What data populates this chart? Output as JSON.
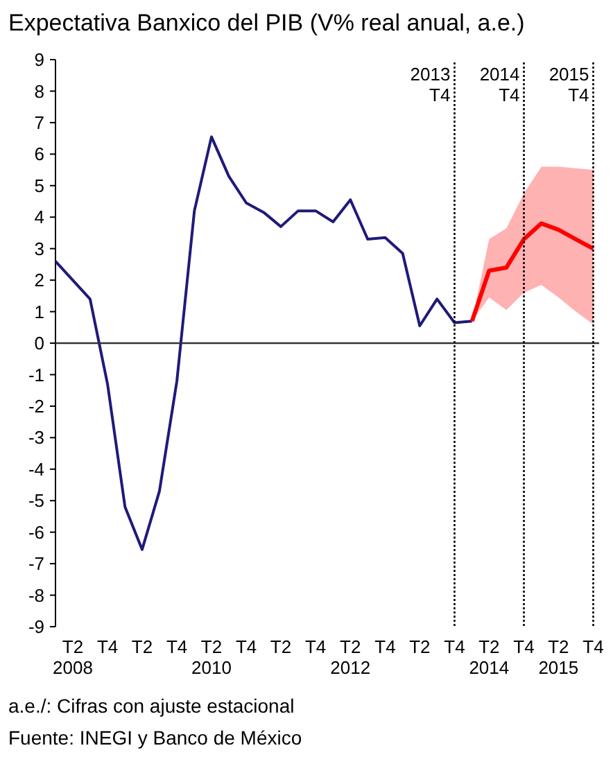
{
  "chart_data": {
    "type": "line",
    "title": "Expectativa Banxico del PIB (V% real anual, a.e.)",
    "x": [
      "2008-01",
      "2008-04",
      "2008-07",
      "2008-10",
      "2009-01",
      "2009-04",
      "2009-07",
      "2009-10",
      "2010-01",
      "2010-04",
      "2010-07",
      "2010-10",
      "2011-01",
      "2011-04",
      "2011-07",
      "2011-10",
      "2012-01",
      "2012-04",
      "2012-07",
      "2012-10",
      "2013-01",
      "2013-04",
      "2013-07",
      "2013-10",
      "2014-01",
      "2014-04",
      "2014-07",
      "2014-10",
      "2015-01",
      "2015-04",
      "2015-07",
      "2015-10"
    ],
    "series": [
      {
        "color": "#1f1a7a",
        "values": [
          2.6,
          2.0,
          1.4,
          -1.3,
          -5.2,
          -6.55,
          -4.7,
          -1.2,
          4.2,
          6.55,
          5.3,
          4.45,
          4.15,
          3.7,
          4.2,
          4.2,
          3.85,
          4.55,
          3.3,
          3.35,
          2.85,
          0.55,
          1.4,
          0.65,
          0.7,
          null,
          null,
          null,
          null,
          null,
          null,
          null
        ]
      },
      {
        "color": "#ff0000",
        "values": [
          null,
          null,
          null,
          null,
          null,
          null,
          null,
          null,
          null,
          null,
          null,
          null,
          null,
          null,
          null,
          null,
          null,
          null,
          null,
          null,
          null,
          null,
          null,
          null,
          0.7,
          2.3,
          2.4,
          3.3,
          3.8,
          3.6,
          3.3,
          3.0
        ],
        "lower": [
          null,
          null,
          null,
          null,
          null,
          null,
          null,
          null,
          null,
          null,
          null,
          null,
          null,
          null,
          null,
          null,
          null,
          null,
          null,
          null,
          null,
          null,
          null,
          null,
          0.7,
          1.45,
          1.05,
          1.6,
          1.85,
          1.45,
          1.0,
          0.6
        ],
        "upper": [
          null,
          null,
          null,
          null,
          null,
          null,
          null,
          null,
          null,
          null,
          null,
          null,
          null,
          null,
          null,
          null,
          null,
          null,
          null,
          null,
          null,
          null,
          null,
          null,
          0.7,
          3.3,
          3.65,
          4.75,
          5.6,
          5.6,
          5.55,
          5.5
        ]
      }
    ],
    "xlim": [
      "2008-01",
      "2015-11"
    ],
    "xticks": [
      {
        "value": "2008-04",
        "label": "T2\n2008"
      },
      {
        "value": "2008-10",
        "label": "T4"
      },
      {
        "value": "2009-04",
        "label": "T2"
      },
      {
        "value": "2009-10",
        "label": "T4"
      },
      {
        "value": "2010-04",
        "label": "T2\n2010"
      },
      {
        "value": "2010-10",
        "label": "T4"
      },
      {
        "value": "2011-04",
        "label": "T2"
      },
      {
        "value": "2011-10",
        "label": "T4"
      },
      {
        "value": "2012-04",
        "label": "T2\n2012"
      },
      {
        "value": "2012-10",
        "label": "T4"
      },
      {
        "value": "2013-04",
        "label": "T2"
      },
      {
        "value": "2013-10",
        "label": "T4"
      },
      {
        "value": "2014-04",
        "label": "T2\n2014"
      },
      {
        "value": "2014-10",
        "label": "T4"
      },
      {
        "value": "2015-04",
        "label": "T2\n2015"
      },
      {
        "value": "2015-10",
        "label": "T4"
      }
    ],
    "ylim": [
      -9,
      9
    ],
    "yticks": [
      -9,
      -8,
      -7,
      -6,
      -5,
      -4,
      -3,
      -2,
      -1,
      0,
      1,
      2,
      3,
      4,
      5,
      6,
      7,
      8,
      9
    ],
    "grid": false,
    "ref_lines": [
      {
        "axis": "y",
        "value": 0,
        "color": "#333333",
        "line_style": "solid"
      },
      {
        "axis": "x",
        "value": "2013-10",
        "label": "2013\nT4",
        "color": "#000000",
        "line_style": "dotted"
      },
      {
        "axis": "x",
        "value": "2014-10",
        "label": "2014\nT4",
        "color": "#000000",
        "line_style": "dotted"
      },
      {
        "axis": "x",
        "value": "2015-10",
        "label": "2015\nT4",
        "color": "#000000",
        "line_style": "dotted"
      }
    ],
    "annotations": [
      "a.e./: Cifras con ajuste estacional",
      "Fuente: INEGI y Banco de México"
    ]
  }
}
